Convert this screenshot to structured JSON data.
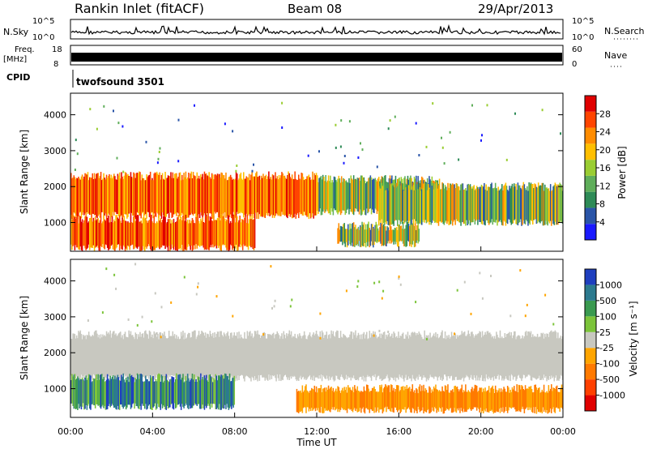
{
  "header": {
    "station": "Rankin Inlet (fitACF)",
    "beam": "Beam 08",
    "date": "29/Apr/2013"
  },
  "top_panels": {
    "nsky_label": "N.Sky",
    "nsky_scale": [
      "10^5",
      "10^0"
    ],
    "nsearch_label": "N.Search",
    "nsearch_scale": [
      "10^5",
      "10^0"
    ],
    "freq_label": "Freq.",
    "freq_unit": "[MHz]",
    "freq_ticks": [
      "18",
      "8"
    ],
    "nave_label": "Nave",
    "nave_ticks": [
      "60",
      "0"
    ],
    "cpid_label": "CPID",
    "cpid_value": "twofsound 3501"
  },
  "colors": {
    "power_scale": [
      "#1a1aff",
      "#2a55a8",
      "#2e8b57",
      "#5fae5a",
      "#9acd32",
      "#ffbf00",
      "#ff8c00",
      "#ff4500",
      "#e00000"
    ],
    "velocity_scale": [
      "#1f3fbf",
      "#2c7a8f",
      "#3a9a50",
      "#7cc43a",
      "#c8c8c0",
      "#ffa500",
      "#ff7a00",
      "#ff4000",
      "#e00000"
    ]
  },
  "chart_data": [
    {
      "type": "heatmap",
      "panel": "power",
      "ylabel": "Slant Range [km]",
      "yticks": [
        "1000",
        "2000",
        "3000",
        "4000"
      ],
      "ylim": [
        200,
        4600
      ],
      "xticks": [
        "00:00",
        "04:00",
        "08:00",
        "12:00",
        "16:00",
        "20:00",
        "00:00"
      ],
      "colorbar_label": "Power [dB]",
      "colorbar_ticks": [
        "4",
        "8",
        "12",
        "16",
        "20",
        "24",
        "28"
      ],
      "bands": [
        {
          "t": [
            0,
            12
          ],
          "r": [
            1200,
            2300
          ],
          "level": "high"
        },
        {
          "t": [
            0,
            9
          ],
          "r": [
            300,
            1100
          ],
          "level": "high"
        },
        {
          "t": [
            12,
            18
          ],
          "r": [
            1300,
            2200
          ],
          "level": "mid"
        },
        {
          "t": [
            15,
            24
          ],
          "r": [
            1000,
            2000
          ],
          "level": "mid"
        },
        {
          "t": [
            13,
            17
          ],
          "r": [
            400,
            900
          ],
          "level": "mid"
        }
      ]
    },
    {
      "type": "heatmap",
      "panel": "velocity",
      "ylabel": "Slant Range [km]",
      "yticks": [
        "1000",
        "2000",
        "3000",
        "4000"
      ],
      "ylim": [
        200,
        4600
      ],
      "xticks": [
        "00:00",
        "04:00",
        "08:00",
        "12:00",
        "16:00",
        "20:00",
        "00:00"
      ],
      "xlabel": "Time UT",
      "colorbar_label": "Velocity [m s⁻¹]",
      "colorbar_ticks": [
        "1000",
        "500",
        "100",
        "25",
        "-25",
        "-100",
        "-500",
        "-1000"
      ],
      "bands": [
        {
          "t": [
            0,
            24
          ],
          "r": [
            1300,
            2500
          ],
          "level": "ground"
        },
        {
          "t": [
            0,
            8
          ],
          "r": [
            500,
            1300
          ],
          "level": "positive"
        },
        {
          "t": [
            11,
            24
          ],
          "r": [
            400,
            1000
          ],
          "level": "negative"
        }
      ]
    }
  ]
}
